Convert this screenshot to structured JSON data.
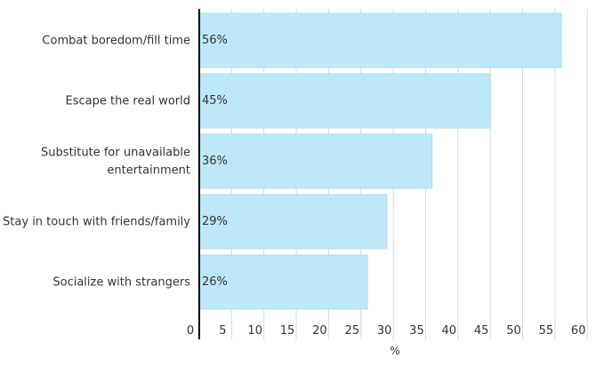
{
  "chart_data": {
    "type": "bar",
    "orientation": "horizontal",
    "categories": [
      [
        "Combat boredom/fill time"
      ],
      [
        "Escape the real world"
      ],
      [
        "Substitute for unavailable",
        "entertainment"
      ],
      [
        "Stay in touch with friends/family"
      ],
      [
        "Socialize with strangers"
      ]
    ],
    "values": [
      56,
      45,
      36,
      29,
      26
    ],
    "data_labels": [
      "56%",
      "45%",
      "36%",
      "29%",
      "26%"
    ],
    "xlabel": "%",
    "xlim": [
      0,
      60
    ],
    "xticks": [
      0,
      5,
      10,
      15,
      20,
      25,
      30,
      35,
      40,
      45,
      50,
      55,
      60
    ],
    "grid": true,
    "bar_color": "#bde8f8",
    "bar_edge_color": "#a9def2",
    "grid_color": "#d9d9d9",
    "axis_color": "#000000"
  }
}
